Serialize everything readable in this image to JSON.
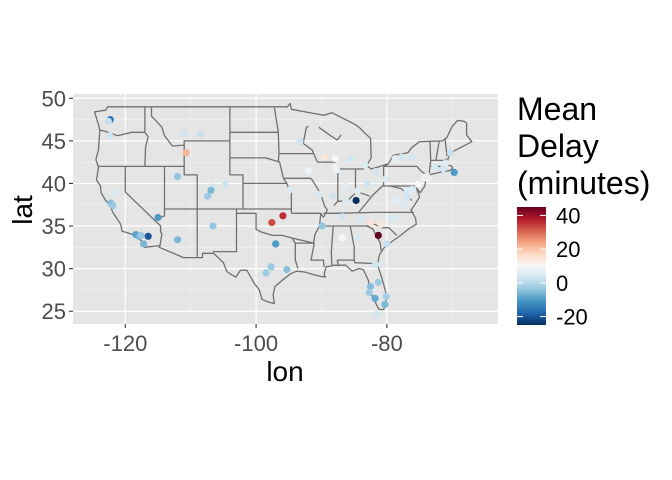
{
  "chart_data": {
    "type": "scatter",
    "xlabel": "lon",
    "ylabel": "lat",
    "xlim": [
      -128,
      -63
    ],
    "ylim": [
      23.5,
      50.5
    ],
    "x_ticks": [
      -120,
      -100,
      -80
    ],
    "y_ticks": [
      25,
      30,
      35,
      40,
      45,
      50
    ],
    "x_tick_labels": [
      "-120",
      "-100",
      "-80"
    ],
    "y_tick_labels": [
      "25",
      "30",
      "35",
      "40",
      "45",
      "50"
    ],
    "grid": true,
    "legend": {
      "title_lines": [
        "Mean",
        "Delay",
        "(minutes)"
      ],
      "placement": "right",
      "min": -25,
      "max": 45,
      "ticks": [
        40,
        20,
        0,
        -20
      ],
      "tick_labels": [
        "40",
        "20",
        "0",
        "-20"
      ],
      "colors": [
        "#053061",
        "#2166ac",
        "#4393c3",
        "#92c5de",
        "#d1e5f0",
        "#f7f7f7",
        "#fddbc7",
        "#f4a582",
        "#d6604d",
        "#b2182b",
        "#67001f"
      ]
    },
    "colors": {
      "panel": "#e5e5e5",
      "grid": "#ffffff",
      "state_line": "#707070"
    },
    "points": [
      {
        "lon": -122.3,
        "lat": 47.5,
        "delay": -15
      },
      {
        "lon": -122.6,
        "lat": 47.3,
        "delay": 2
      },
      {
        "lon": -122.4,
        "lat": 45.6,
        "delay": 3
      },
      {
        "lon": -111.0,
        "lat": 45.8,
        "delay": 3
      },
      {
        "lon": -108.5,
        "lat": 45.8,
        "delay": 2
      },
      {
        "lon": -110.7,
        "lat": 43.6,
        "delay": 22
      },
      {
        "lon": -112.0,
        "lat": 40.8,
        "delay": -4
      },
      {
        "lon": -106.6,
        "lat": 39.6,
        "delay": 3
      },
      {
        "lon": -106.9,
        "lat": 39.2,
        "delay": -6
      },
      {
        "lon": -104.7,
        "lat": 39.9,
        "delay": 3
      },
      {
        "lon": -107.4,
        "lat": 38.5,
        "delay": -3
      },
      {
        "lon": -121.6,
        "lat": 38.8,
        "delay": 5
      },
      {
        "lon": -122.2,
        "lat": 37.7,
        "delay": -5
      },
      {
        "lon": -121.9,
        "lat": 37.4,
        "delay": -3
      },
      {
        "lon": -106.6,
        "lat": 35.0,
        "delay": -4
      },
      {
        "lon": -112.0,
        "lat": 33.4,
        "delay": -6
      },
      {
        "lon": -115.0,
        "lat": 36.0,
        "delay": -10
      },
      {
        "lon": -118.4,
        "lat": 34.0,
        "delay": -9
      },
      {
        "lon": -117.9,
        "lat": 33.8,
        "delay": -7
      },
      {
        "lon": -117.2,
        "lat": 32.9,
        "delay": -6
      },
      {
        "lon": -117.6,
        "lat": 33.9,
        "delay": -3
      },
      {
        "lon": -116.5,
        "lat": 33.8,
        "delay": -20
      },
      {
        "lon": -97.6,
        "lat": 35.4,
        "delay": 33
      },
      {
        "lon": -95.9,
        "lat": 36.2,
        "delay": 36
      },
      {
        "lon": -97.0,
        "lat": 32.9,
        "delay": -10
      },
      {
        "lon": -98.5,
        "lat": 29.5,
        "delay": -3
      },
      {
        "lon": -97.7,
        "lat": 30.2,
        "delay": -3
      },
      {
        "lon": -95.3,
        "lat": 29.9,
        "delay": -5
      },
      {
        "lon": -94.7,
        "lat": 39.3,
        "delay": 5
      },
      {
        "lon": -93.3,
        "lat": 44.9,
        "delay": 3
      },
      {
        "lon": -92.0,
        "lat": 41.5,
        "delay": 8
      },
      {
        "lon": -90.3,
        "lat": 38.7,
        "delay": 4
      },
      {
        "lon": -89.5,
        "lat": 43.1,
        "delay": 14
      },
      {
        "lon": -87.9,
        "lat": 42.9,
        "delay": 10
      },
      {
        "lon": -87.9,
        "lat": 41.9,
        "delay": 8
      },
      {
        "lon": -87.7,
        "lat": 41.6,
        "delay": 8
      },
      {
        "lon": -86.3,
        "lat": 39.7,
        "delay": 6
      },
      {
        "lon": -85.6,
        "lat": 42.9,
        "delay": 3
      },
      {
        "lon": -84.4,
        "lat": 33.6,
        "delay": 4
      },
      {
        "lon": -84.7,
        "lat": 38.0,
        "delay": -25
      },
      {
        "lon": -83.4,
        "lat": 42.2,
        "delay": 5
      },
      {
        "lon": -84.5,
        "lat": 39.1,
        "delay": 5
      },
      {
        "lon": -83.0,
        "lat": 40.0,
        "delay": 3
      },
      {
        "lon": -81.7,
        "lat": 41.4,
        "delay": 3
      },
      {
        "lon": -80.2,
        "lat": 40.5,
        "delay": 5
      },
      {
        "lon": -86.8,
        "lat": 36.1,
        "delay": 3
      },
      {
        "lon": -86.8,
        "lat": 33.6,
        "delay": 10
      },
      {
        "lon": -84.0,
        "lat": 35.8,
        "delay": 4
      },
      {
        "lon": -82.5,
        "lat": 35.4,
        "delay": 15
      },
      {
        "lon": -80.9,
        "lat": 35.2,
        "delay": 14
      },
      {
        "lon": -81.3,
        "lat": 33.9,
        "delay": 45
      },
      {
        "lon": -80.0,
        "lat": 32.9,
        "delay": 2
      },
      {
        "lon": -78.8,
        "lat": 35.9,
        "delay": 5
      },
      {
        "lon": -77.5,
        "lat": 37.5,
        "delay": 5
      },
      {
        "lon": -77.0,
        "lat": 38.9,
        "delay": 3
      },
      {
        "lon": -76.7,
        "lat": 39.2,
        "delay": 5
      },
      {
        "lon": -75.2,
        "lat": 39.9,
        "delay": 10
      },
      {
        "lon": -74.2,
        "lat": 40.7,
        "delay": 8
      },
      {
        "lon": -73.8,
        "lat": 40.6,
        "delay": 10
      },
      {
        "lon": -73.9,
        "lat": 40.8,
        "delay": 7
      },
      {
        "lon": -72.7,
        "lat": 41.9,
        "delay": 4
      },
      {
        "lon": -71.0,
        "lat": 42.4,
        "delay": 5
      },
      {
        "lon": -71.4,
        "lat": 41.7,
        "delay": 3
      },
      {
        "lon": -70.3,
        "lat": 43.6,
        "delay": 2
      },
      {
        "lon": -69.7,
        "lat": 41.3,
        "delay": -10
      },
      {
        "lon": -76.1,
        "lat": 43.1,
        "delay": 4
      },
      {
        "lon": -78.7,
        "lat": 42.9,
        "delay": 6
      },
      {
        "lon": -77.7,
        "lat": 43.1,
        "delay": 3
      },
      {
        "lon": -81.7,
        "lat": 30.5,
        "delay": 3
      },
      {
        "lon": -81.3,
        "lat": 28.4,
        "delay": -3
      },
      {
        "lon": -82.5,
        "lat": 27.9,
        "delay": -5
      },
      {
        "lon": -82.7,
        "lat": 27.2,
        "delay": -3
      },
      {
        "lon": -80.1,
        "lat": 26.7,
        "delay": -2
      },
      {
        "lon": -80.3,
        "lat": 25.8,
        "delay": -6
      },
      {
        "lon": -81.8,
        "lat": 26.5,
        "delay": -8
      },
      {
        "lon": -81.5,
        "lat": 24.6,
        "delay": 3
      },
      {
        "lon": -76.1,
        "lat": 39.3,
        "delay": 5
      },
      {
        "lon": -79.2,
        "lat": 36.1,
        "delay": 4
      },
      {
        "lon": -76.9,
        "lat": 38.3,
        "delay": 3
      },
      {
        "lon": -78.5,
        "lat": 38.0,
        "delay": 6
      },
      {
        "lon": -88.2,
        "lat": 38.5,
        "delay": 3
      },
      {
        "lon": -89.9,
        "lat": 35.0,
        "delay": -4
      },
      {
        "lon": -86.3,
        "lat": 38.0,
        "delay": 4
      }
    ]
  }
}
